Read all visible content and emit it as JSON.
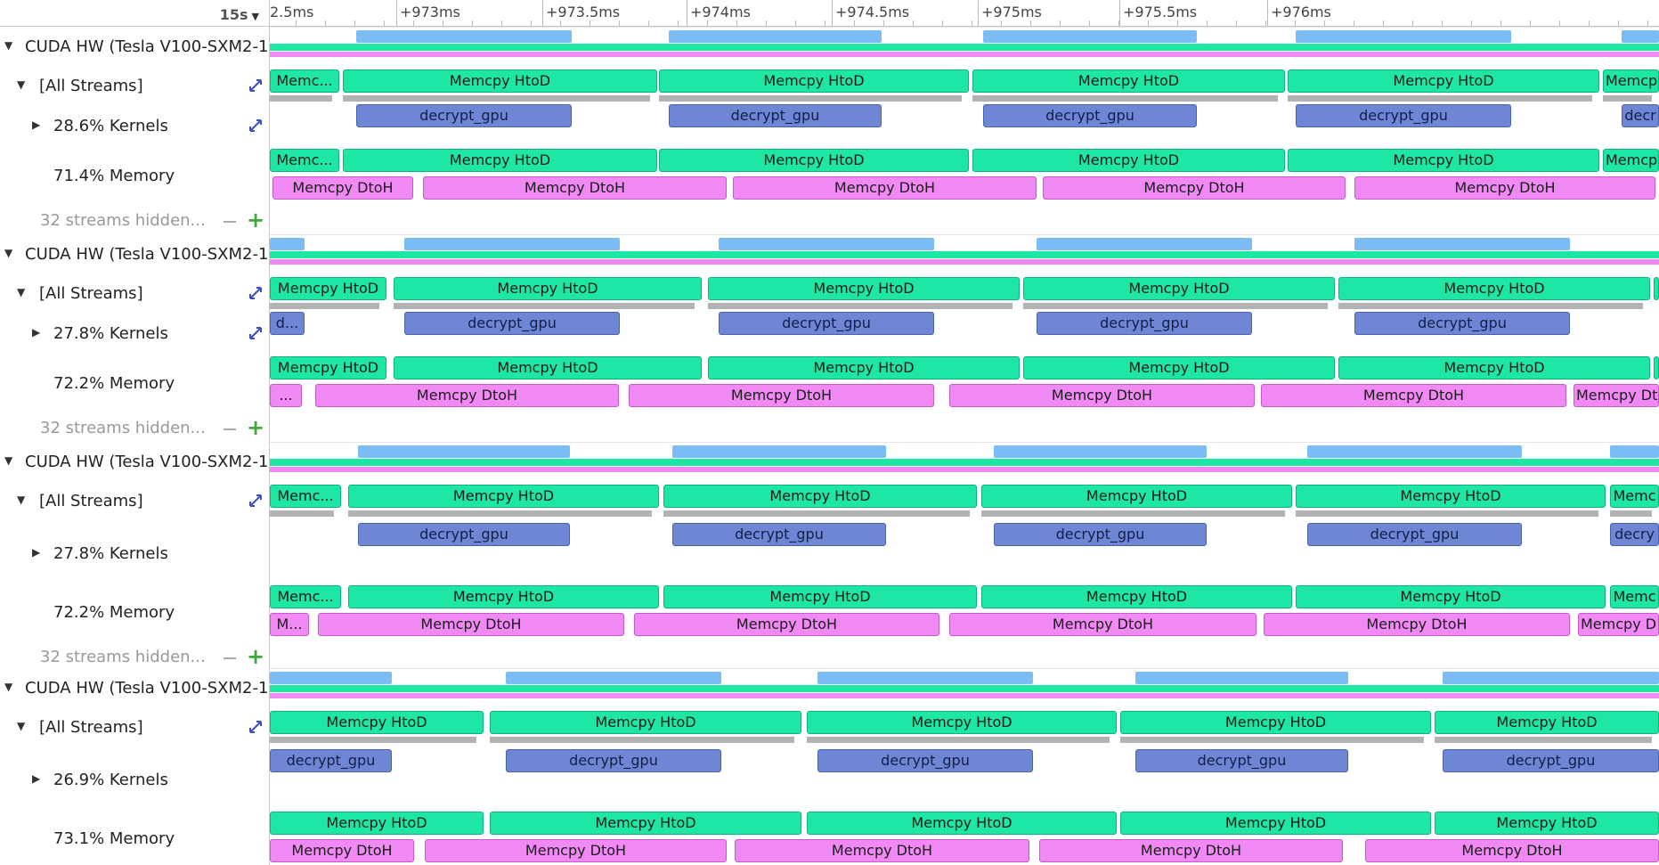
{
  "ruler": {
    "zoom": "15s",
    "ticks": [
      "2.5ms",
      "+973ms",
      "+973.5ms",
      "+974ms",
      "+974.5ms",
      "+975ms",
      "+975.5ms",
      "+976ms"
    ]
  },
  "colors": {
    "htod": "#1ee6a4",
    "kernel": "#6e86d4",
    "dtoh": "#f089f4",
    "summary": "#7cbcf4"
  },
  "labels": {
    "htod": "Memcpy HtoD",
    "htod_short": "Memc...",
    "kernel": "decrypt_gpu",
    "dtoh": "Memcpy DtoH",
    "all_streams": "[All Streams]",
    "hidden_streams": "32 streams hidden..."
  },
  "devices": [
    {
      "title": "CUDA HW (Tesla V100-SXM2-1",
      "kernels_pct": "28.6% Kernels",
      "memory_pct": "71.4% Memory",
      "htod": [
        [
          "Memc...",
          0,
          78
        ],
        [
          "Memcpy HtoD",
          82,
          435
        ],
        [
          "Memcpy HtoD",
          437,
          785
        ],
        [
          "Memcpy HtoD",
          789,
          1140
        ],
        [
          "Memcpy HtoD",
          1143,
          1493
        ],
        [
          "Memcpy",
          1497,
          1560
        ]
      ],
      "kernels": [
        [
          "decrypt_gpu",
          97,
          339
        ],
        [
          "decrypt_gpu",
          448,
          687
        ],
        [
          "decrypt_gpu",
          801,
          1041
        ],
        [
          "decrypt_gpu",
          1152,
          1394
        ],
        [
          "decr",
          1518,
          1560
        ]
      ],
      "dtoh": [
        [
          "Memcpy DtoH",
          3,
          161
        ],
        [
          "Memcpy DtoH",
          172,
          513
        ],
        [
          "Memcpy DtoH",
          520,
          861
        ],
        [
          "Memcpy DtoH",
          868,
          1208
        ],
        [
          "Memcpy DtoH",
          1218,
          1556
        ]
      ],
      "hidden": true
    },
    {
      "title": "CUDA HW (Tesla V100-SXM2-1",
      "kernels_pct": "27.8% Kernels",
      "memory_pct": "72.2% Memory",
      "htod": [
        [
          "Memcpy HtoD",
          0,
          131
        ],
        [
          "Memcpy HtoD",
          139,
          485
        ],
        [
          "Memcpy HtoD",
          492,
          842
        ],
        [
          "Memcpy HtoD",
          846,
          1196
        ],
        [
          "Memcpy HtoD",
          1200,
          1550
        ],
        [
          "",
          1554,
          1560
        ]
      ],
      "kernels": [
        [
          "d...",
          0,
          39
        ],
        [
          "decrypt_gpu",
          151,
          393
        ],
        [
          "decrypt_gpu",
          504,
          746
        ],
        [
          "decrypt_gpu",
          861,
          1103
        ],
        [
          "decrypt_gpu",
          1218,
          1460
        ]
      ],
      "dtoh": [
        [
          "...",
          0,
          36
        ],
        [
          "Memcpy DtoH",
          51,
          392
        ],
        [
          "Memcpy DtoH",
          403,
          746
        ],
        [
          "Memcpy DtoH",
          763,
          1106
        ],
        [
          "Memcpy DtoH",
          1113,
          1456
        ],
        [
          "Memcpy Dt",
          1464,
          1560
        ]
      ],
      "hidden": true
    },
    {
      "title": "CUDA HW (Tesla V100-SXM2-1",
      "kernels_pct": "27.8% Kernels",
      "memory_pct": "72.2% Memory",
      "htod": [
        [
          "Memc...",
          0,
          80
        ],
        [
          "Memcpy HtoD",
          88,
          437
        ],
        [
          "Memcpy HtoD",
          442,
          794
        ],
        [
          "Memcpy HtoD",
          799,
          1148
        ],
        [
          "Memcpy HtoD",
          1152,
          1500
        ],
        [
          "Memc",
          1505,
          1560
        ]
      ],
      "kernels": [
        [
          "decrypt_gpu",
          99,
          337
        ],
        [
          "decrypt_gpu",
          452,
          692
        ],
        [
          "decrypt_gpu",
          813,
          1052
        ],
        [
          "decrypt_gpu",
          1165,
          1406
        ],
        [
          "decry",
          1505,
          1560
        ]
      ],
      "dtoh": [
        [
          "M...",
          0,
          44
        ],
        [
          "Memcpy DtoH",
          54,
          398
        ],
        [
          "Memcpy DtoH",
          409,
          752
        ],
        [
          "Memcpy DtoH",
          763,
          1108
        ],
        [
          "Memcpy DtoH",
          1116,
          1460
        ],
        [
          "Memcpy D",
          1469,
          1560
        ]
      ],
      "hidden": true
    },
    {
      "title": "CUDA HW (Tesla V100-SXM2-1",
      "kernels_pct": "26.9% Kernels",
      "memory_pct": "73.1% Memory",
      "htod": [
        [
          "Memcpy HtoD",
          0,
          240
        ],
        [
          "Memcpy HtoD",
          247,
          597
        ],
        [
          "Memcpy HtoD",
          603,
          951
        ],
        [
          "Memcpy HtoD",
          955,
          1304
        ],
        [
          "Memcpy HtoD",
          1308,
          1560
        ]
      ],
      "kernels": [
        [
          "decrypt_gpu",
          0,
          137
        ],
        [
          "decrypt_gpu",
          265,
          507
        ],
        [
          "decrypt_gpu",
          615,
          857
        ],
        [
          "decrypt_gpu",
          972,
          1211
        ],
        [
          "decrypt_gpu",
          1317,
          1560
        ]
      ],
      "dtoh": [
        [
          "Memcpy DtoH",
          0,
          162
        ],
        [
          "Memcpy DtoH",
          174,
          513
        ],
        [
          "Memcpy DtoH",
          522,
          853
        ],
        [
          "Memcpy DtoH",
          864,
          1205
        ],
        [
          "Memcpy DtoH",
          1230,
          1560
        ]
      ],
      "hidden": false
    }
  ]
}
